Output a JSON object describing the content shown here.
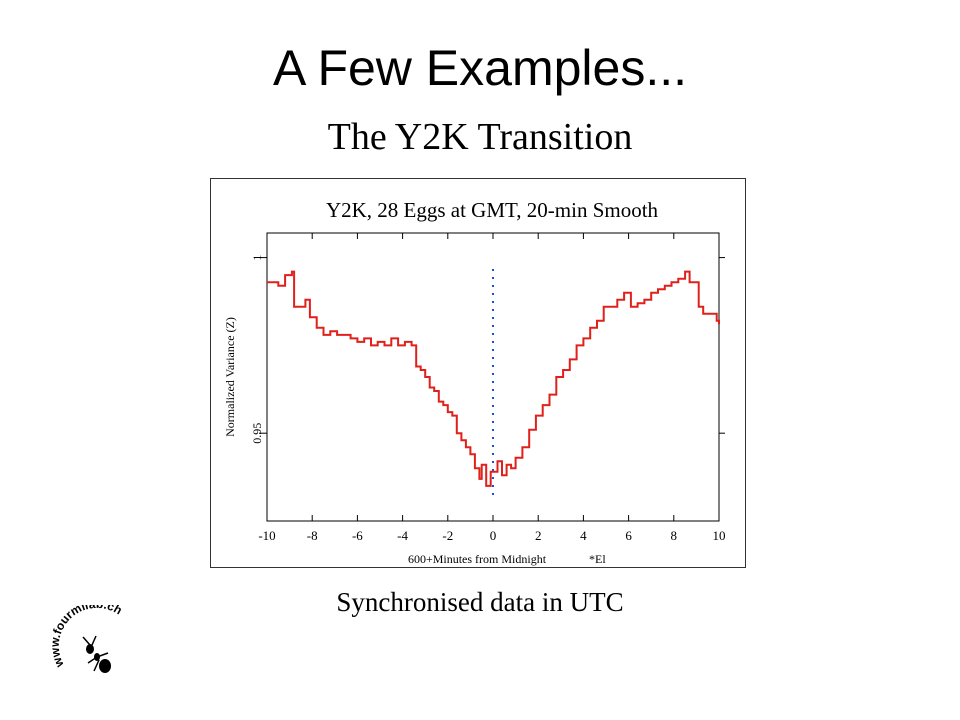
{
  "slide": {
    "title": "A Few Examples...",
    "subtitle": "The Y2K Transition",
    "caption": "Synchronised  data in UTC",
    "logo_text": "www.fourmilab.ch"
  },
  "colors": {
    "series": "#e0201a",
    "marker": "#1f4fd8",
    "axis": "#000000"
  },
  "chart_data": {
    "type": "line",
    "title": "Y2K, 28 Eggs at GMT, 20-min Smooth",
    "xlabel": "600+Minutes from Midnight",
    "xlabel_note": "*El",
    "ylabel": "Normalized Variance (Z)",
    "xlim": [
      -10,
      10
    ],
    "ylim": [
      0.925,
      1.007
    ],
    "x_ticks": [
      -10,
      -8,
      -6,
      -4,
      -2,
      0,
      2,
      4,
      6,
      8,
      10
    ],
    "x_tick_labels": [
      "-10",
      "-8",
      "-6",
      "-4",
      "-2",
      "0",
      "2",
      "4",
      "6",
      "8",
      "10"
    ],
    "y_ticks": [
      1.0,
      0.95
    ],
    "y_tick_labels": [
      "1",
      "0.95"
    ],
    "grid": false,
    "vertical_marker": {
      "x": 0,
      "style": "dotted"
    },
    "series": [
      {
        "x": [
          -10,
          -9.5,
          -9.2,
          -8.9,
          -8.8,
          -8.6,
          -8.3,
          -8.1,
          -7.8,
          -7.5,
          -7.2,
          -6.9,
          -6.6,
          -6.3,
          -6.0,
          -5.7,
          -5.4,
          -5.1,
          -4.8,
          -4.5,
          -4.2,
          -3.9,
          -3.6,
          -3.4,
          -3.2,
          -3.0,
          -2.8,
          -2.6,
          -2.4,
          -2.2,
          -2.0,
          -1.8,
          -1.6,
          -1.4,
          -1.2,
          -1.0,
          -0.8,
          -0.6,
          -0.5,
          -0.3,
          -0.1,
          0.0,
          0.2,
          0.4,
          0.6,
          0.8,
          1.0,
          1.3,
          1.6,
          1.9,
          2.2,
          2.5,
          2.8,
          3.1,
          3.4,
          3.7,
          4.0,
          4.3,
          4.6,
          4.9,
          5.2,
          5.5,
          5.8,
          6.1,
          6.4,
          6.7,
          7.0,
          7.3,
          7.6,
          7.9,
          8.2,
          8.5,
          8.7,
          9.0,
          9.1,
          9.3,
          9.6,
          9.9,
          10
        ],
        "values": [
          0.993,
          0.992,
          0.995,
          0.996,
          0.986,
          0.986,
          0.988,
          0.983,
          0.98,
          0.978,
          0.979,
          0.978,
          0.978,
          0.977,
          0.976,
          0.977,
          0.975,
          0.976,
          0.975,
          0.977,
          0.975,
          0.976,
          0.975,
          0.969,
          0.968,
          0.966,
          0.963,
          0.962,
          0.959,
          0.958,
          0.956,
          0.955,
          0.95,
          0.948,
          0.946,
          0.944,
          0.94,
          0.937,
          0.941,
          0.935,
          0.939,
          0.939,
          0.942,
          0.938,
          0.941,
          0.94,
          0.943,
          0.946,
          0.951,
          0.955,
          0.958,
          0.961,
          0.966,
          0.968,
          0.971,
          0.975,
          0.977,
          0.98,
          0.982,
          0.986,
          0.986,
          0.988,
          0.99,
          0.986,
          0.987,
          0.988,
          0.99,
          0.991,
          0.992,
          0.993,
          0.994,
          0.996,
          0.993,
          0.993,
          0.986,
          0.984,
          0.984,
          0.982,
          0.981
        ]
      }
    ]
  }
}
